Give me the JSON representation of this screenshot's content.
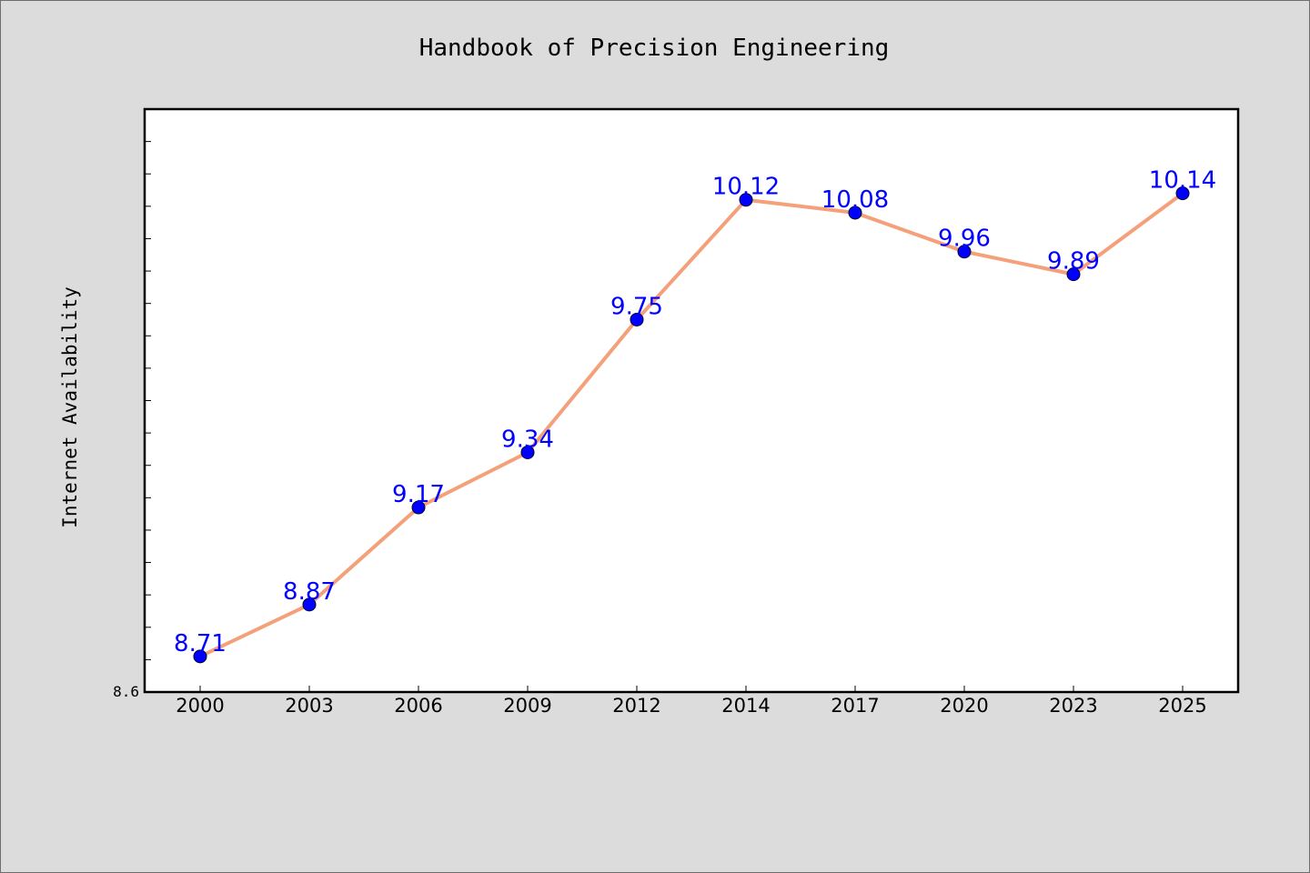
{
  "chart_data": {
    "type": "line",
    "title": "Handbook of Precision Engineering",
    "ylabel": "Internet Availability",
    "xlabel": "",
    "categories": [
      "2000",
      "2003",
      "2006",
      "2009",
      "2012",
      "2014",
      "2017",
      "2020",
      "2023",
      "2025"
    ],
    "values": [
      8.71,
      8.87,
      9.17,
      9.34,
      9.75,
      10.12,
      10.08,
      9.96,
      9.89,
      10.14
    ],
    "data_labels": [
      "8.71",
      "8.87",
      "9.17",
      "9.34",
      "9.75",
      "10.12",
      "10.08",
      "9.96",
      "9.89",
      "10.14"
    ],
    "ylim": [
      8.6,
      10.4
    ],
    "y_tick_labels": [
      "8.6"
    ],
    "grid": false,
    "legend": "none",
    "colors": {
      "line": "#f4a07a",
      "marker_fill": "#0000ff",
      "marker_edge": "#000033",
      "label": "#0000ff",
      "plot_bg": "#ffffff",
      "page_bg": "#dcdcdc"
    }
  }
}
